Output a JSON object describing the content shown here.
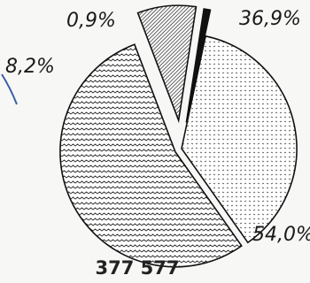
{
  "chart_data": {
    "type": "pie",
    "title": "",
    "total_label": "377 577",
    "slices": [
      {
        "label": "36,9%",
        "value": 36.9,
        "pattern": "dots"
      },
      {
        "label": "54,0%",
        "value": 54.0,
        "pattern": "waves"
      },
      {
        "label": "8,2%",
        "value": 8.2,
        "pattern": "diagonal-lines"
      },
      {
        "label": "0,9%",
        "value": 0.9,
        "pattern": "solid-black"
      }
    ],
    "accent_line_color": "#3b5fa8"
  }
}
